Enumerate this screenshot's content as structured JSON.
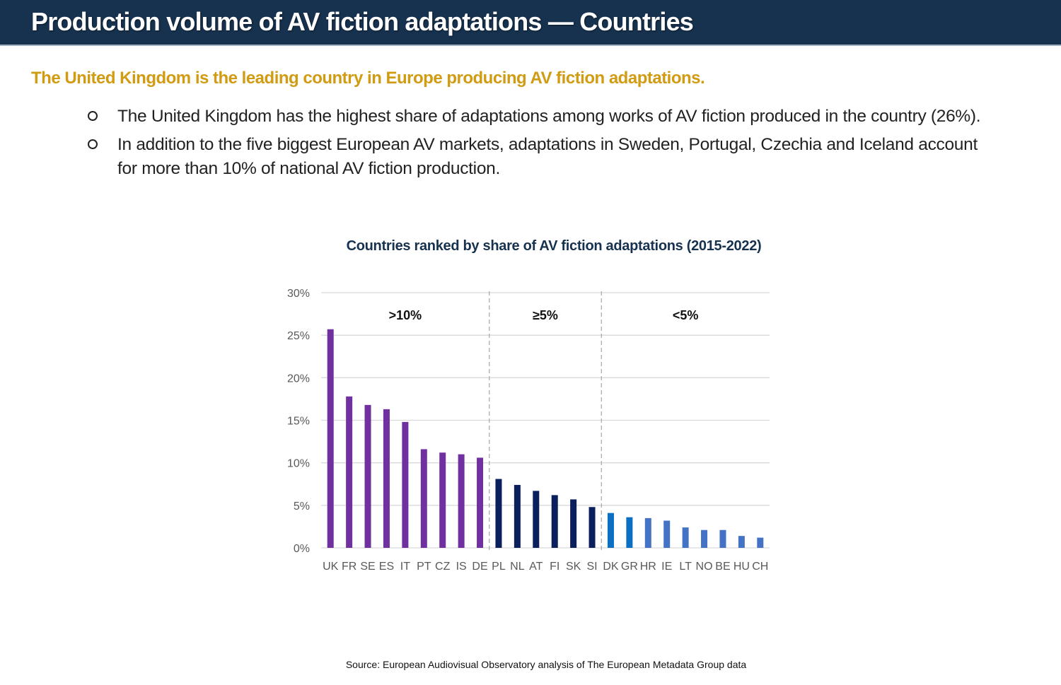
{
  "header": {
    "title": "Production volume of AV fiction adaptations — Countries"
  },
  "lead": "The United Kingdom is the leading country in Europe producing AV fiction adaptations.",
  "bullets": [
    "The United Kingdom has the highest share of adaptations among works of AV fiction produced in the country (26%).",
    "In addition to the five biggest European AV markets, adaptations in Sweden, Portugal, Czechia and Iceland account for more than 10% of national AV fiction production."
  ],
  "source": "Source: European Audiovisual Observatory analysis of The European Metadata Group data",
  "chart_data": {
    "type": "bar",
    "title": "Countries ranked by share of AV fiction adaptations (2015-2022)",
    "xlabel": "",
    "ylabel": "",
    "ylim": [
      0,
      30
    ],
    "yticks": [
      0,
      5,
      10,
      15,
      20,
      25,
      30
    ],
    "ytick_labels": [
      "0%",
      "5%",
      "10%",
      "15%",
      "20%",
      "25%",
      "30%"
    ],
    "grid": true,
    "categories": [
      "UK",
      "FR",
      "SE",
      "ES",
      "IT",
      "PT",
      "CZ",
      "IS",
      "DE",
      "PL",
      "NL",
      "AT",
      "FI",
      "SK",
      "SI",
      "DK",
      "GR",
      "HR",
      "IE",
      "LT",
      "NO",
      "BE",
      "HU",
      "CH"
    ],
    "values": [
      25.7,
      17.8,
      16.8,
      16.3,
      14.8,
      11.6,
      11.2,
      11.0,
      10.6,
      8.1,
      7.4,
      6.7,
      6.2,
      5.7,
      4.8,
      4.1,
      3.6,
      3.5,
      3.2,
      2.4,
      2.1,
      2.1,
      1.4,
      1.2
    ],
    "colors": [
      "#7030a0",
      "#7030a0",
      "#7030a0",
      "#7030a0",
      "#7030a0",
      "#7030a0",
      "#7030a0",
      "#7030a0",
      "#7030a0",
      "#0a1f5c",
      "#0a1f5c",
      "#0a1f5c",
      "#0a1f5c",
      "#0a1f5c",
      "#0a1f5c",
      "#0b6fc3",
      "#0b6fc3",
      "#4472c4",
      "#4472c4",
      "#4472c4",
      "#4472c4",
      "#4472c4",
      "#4472c4",
      "#4472c4"
    ],
    "groups": [
      {
        "label": ">10%",
        "start": 0,
        "end": 8
      },
      {
        "label": "≥5%",
        "start": 9,
        "end": 14
      },
      {
        "label": "<5%",
        "start": 15,
        "end": 23
      }
    ]
  }
}
